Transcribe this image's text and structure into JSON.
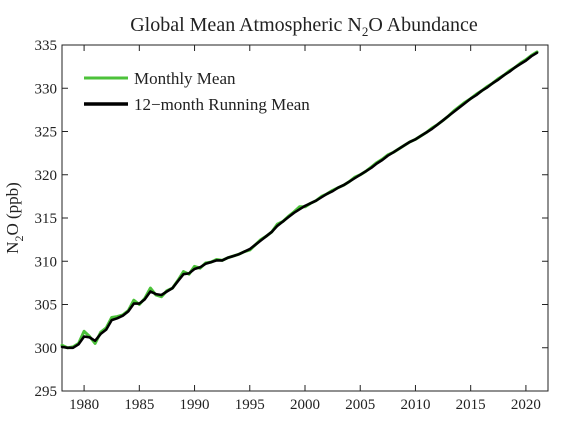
{
  "chart_data": {
    "type": "line",
    "title": {
      "pre": "Global Mean Atmospheric N",
      "sub": "2",
      "post": "O Abundance"
    },
    "ylabel": {
      "pre": "N",
      "sub": "2",
      "post": "O (ppb)"
    },
    "xlabel": "",
    "xlim": [
      1978,
      2022
    ],
    "ylim": [
      295,
      335
    ],
    "x_ticks": [
      1980,
      1985,
      1990,
      1995,
      2000,
      2005,
      2010,
      2015,
      2020
    ],
    "y_ticks": [
      295,
      300,
      305,
      310,
      315,
      320,
      325,
      330,
      335
    ],
    "grid": false,
    "legend_position": "top-left",
    "series": [
      {
        "name": "Monthly Mean",
        "color": "#4cc23a",
        "x": [
          1978.0,
          1978.5,
          1979.0,
          1979.5,
          1980.0,
          1980.5,
          1981.0,
          1981.5,
          1982.0,
          1982.5,
          1983.0,
          1983.5,
          1984.0,
          1984.5,
          1985.0,
          1985.5,
          1986.0,
          1986.5,
          1987.0,
          1987.5,
          1988.0,
          1988.5,
          1989.0,
          1989.5,
          1990.0,
          1990.5,
          1991.0,
          1991.5,
          1992.0,
          1992.5,
          1993.0,
          1993.5,
          1994.0,
          1994.5,
          1995.0,
          1995.5,
          1996.0,
          1996.5,
          1997.0,
          1997.5,
          1998.0,
          1998.5,
          1999.0,
          1999.5,
          2000.0,
          2000.5,
          2001.0,
          2001.5,
          2002.0,
          2002.5,
          2003.0,
          2003.5,
          2004.0,
          2004.5,
          2005.0,
          2005.5,
          2006.0,
          2006.5,
          2007.0,
          2007.5,
          2008.0,
          2008.5,
          2009.0,
          2009.5,
          2010.0,
          2010.5,
          2011.0,
          2011.5,
          2012.0,
          2012.5,
          2013.0,
          2013.5,
          2014.0,
          2014.5,
          2015.0,
          2015.5,
          2016.0,
          2016.5,
          2017.0,
          2017.5,
          2018.0,
          2018.5,
          2019.0,
          2019.5,
          2020.0,
          2020.5,
          2021.0
        ],
        "values": [
          300.3,
          300.0,
          300.1,
          300.5,
          301.9,
          301.3,
          300.5,
          301.8,
          302.3,
          303.5,
          303.6,
          303.8,
          304.3,
          305.5,
          305.0,
          305.7,
          306.9,
          306.1,
          305.9,
          306.6,
          306.9,
          307.8,
          308.8,
          308.5,
          309.4,
          309.2,
          309.8,
          309.9,
          310.2,
          310.1,
          310.4,
          310.6,
          310.8,
          311.1,
          311.3,
          311.9,
          312.5,
          312.9,
          313.4,
          314.3,
          314.6,
          315.2,
          315.7,
          316.3,
          316.3,
          316.7,
          317.0,
          317.5,
          317.8,
          318.2,
          318.5,
          318.8,
          319.2,
          319.7,
          320.0,
          320.4,
          320.9,
          321.4,
          321.8,
          322.3,
          322.6,
          323.0,
          323.4,
          323.8,
          324.1,
          324.5,
          324.9,
          325.4,
          325.8,
          326.3,
          326.8,
          327.4,
          327.9,
          328.4,
          328.8,
          329.3,
          329.7,
          330.2,
          330.6,
          331.1,
          331.5,
          332.0,
          332.4,
          332.9,
          333.3,
          333.8,
          334.2
        ]
      },
      {
        "name": "12−month Running Mean",
        "color": "#000000",
        "x": [
          1978.0,
          1978.5,
          1979.0,
          1979.5,
          1980.0,
          1980.5,
          1981.0,
          1981.5,
          1982.0,
          1982.5,
          1983.0,
          1983.5,
          1984.0,
          1984.5,
          1985.0,
          1985.5,
          1986.0,
          1986.5,
          1987.0,
          1987.5,
          1988.0,
          1988.5,
          1989.0,
          1989.5,
          1990.0,
          1990.5,
          1991.0,
          1991.5,
          1992.0,
          1992.5,
          1993.0,
          1993.5,
          1994.0,
          1994.5,
          1995.0,
          1995.5,
          1996.0,
          1996.5,
          1997.0,
          1997.5,
          1998.0,
          1998.5,
          1999.0,
          1999.5,
          2000.0,
          2000.5,
          2001.0,
          2001.5,
          2002.0,
          2002.5,
          2003.0,
          2003.5,
          2004.0,
          2004.5,
          2005.0,
          2005.5,
          2006.0,
          2006.5,
          2007.0,
          2007.5,
          2008.0,
          2008.5,
          2009.0,
          2009.5,
          2010.0,
          2010.5,
          2011.0,
          2011.5,
          2012.0,
          2012.5,
          2013.0,
          2013.5,
          2014.0,
          2014.5,
          2015.0,
          2015.5,
          2016.0,
          2016.5,
          2017.0,
          2017.5,
          2018.0,
          2018.5,
          2019.0,
          2019.5,
          2020.0,
          2020.5,
          2021.0
        ],
        "values": [
          300.1,
          300.0,
          300.0,
          300.4,
          301.3,
          301.2,
          300.8,
          301.6,
          302.1,
          303.2,
          303.4,
          303.7,
          304.2,
          305.1,
          305.1,
          305.6,
          306.5,
          306.2,
          306.1,
          306.5,
          306.9,
          307.7,
          308.5,
          308.6,
          309.1,
          309.3,
          309.7,
          309.9,
          310.1,
          310.1,
          310.4,
          310.6,
          310.8,
          311.1,
          311.4,
          311.9,
          312.4,
          312.9,
          313.4,
          314.1,
          314.6,
          315.1,
          315.6,
          316.0,
          316.4,
          316.7,
          317.0,
          317.4,
          317.8,
          318.1,
          318.5,
          318.8,
          319.2,
          319.6,
          320.0,
          320.4,
          320.8,
          321.3,
          321.7,
          322.2,
          322.6,
          323.0,
          323.4,
          323.8,
          324.1,
          324.5,
          324.9,
          325.3,
          325.8,
          326.3,
          326.8,
          327.3,
          327.8,
          328.3,
          328.8,
          329.2,
          329.7,
          330.1,
          330.6,
          331.0,
          331.5,
          331.9,
          332.4,
          332.8,
          333.2,
          333.7,
          334.1
        ]
      }
    ]
  }
}
